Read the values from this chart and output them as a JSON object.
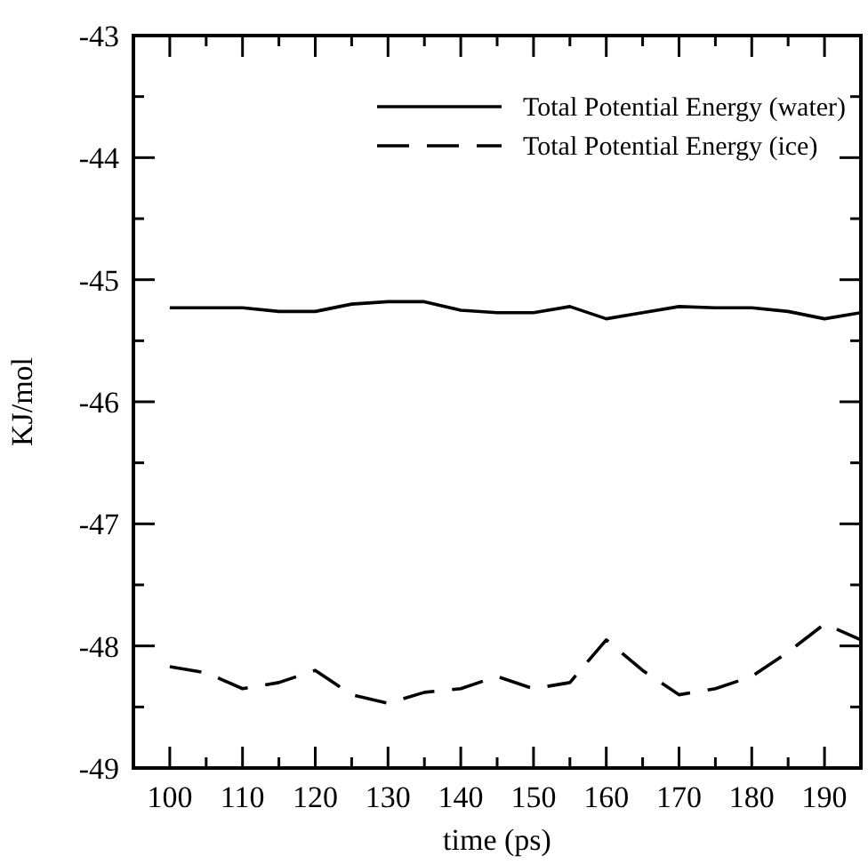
{
  "chart_data": {
    "type": "line",
    "xlabel": "time (ps)",
    "ylabel": "KJ/mol",
    "xlim": [
      95,
      195
    ],
    "ylim": [
      -49,
      -43
    ],
    "xticks": [
      100,
      {
        "value": 105,
        "label": null
      },
      110,
      {
        "value": 115,
        "label": null
      },
      120,
      {
        "value": 125,
        "label": null
      },
      130,
      {
        "value": 135,
        "label": null
      },
      140,
      {
        "value": 145,
        "label": null
      },
      150,
      {
        "value": 155,
        "label": null
      },
      160,
      {
        "value": 165,
        "label": null
      },
      170,
      {
        "value": 175,
        "label": null
      },
      180,
      {
        "value": 185,
        "label": null
      },
      190
    ],
    "yticks": [
      -49,
      {
        "value": -48.5,
        "label": null
      },
      -48,
      {
        "value": -47.5,
        "label": null
      },
      -47,
      {
        "value": -46.5,
        "label": null
      },
      -46,
      {
        "value": -45.5,
        "label": null
      },
      -45,
      {
        "value": -44.5,
        "label": null
      },
      -44,
      {
        "value": -43.5,
        "label": null
      },
      -43
    ],
    "x": [
      100,
      105,
      110,
      115,
      120,
      125,
      130,
      135,
      140,
      145,
      150,
      155,
      160,
      165,
      170,
      175,
      180,
      185,
      190,
      195
    ],
    "legend": "top right",
    "grid": false,
    "marker": "none",
    "series": [
      {
        "name": "Total Potential Energy (water)",
        "color": "#000000",
        "line_style": "solid",
        "values": [
          -45.23,
          -45.23,
          -45.23,
          -45.26,
          -45.26,
          -45.2,
          -45.18,
          -45.18,
          -45.25,
          -45.27,
          -45.27,
          -45.22,
          -45.32,
          -45.27,
          -45.22,
          -45.23,
          -45.23,
          -45.26,
          -45.32,
          -45.27
        ]
      },
      {
        "name": "Total Potential Energy (ice)",
        "color": "#000000",
        "line_style": "dashed",
        "values": [
          -48.17,
          -48.22,
          -48.35,
          -48.3,
          -48.2,
          -48.4,
          -48.47,
          -48.38,
          -48.35,
          -48.25,
          -48.35,
          -48.3,
          -47.95,
          -48.2,
          -48.4,
          -48.35,
          -48.25,
          -48.05,
          -47.82,
          -47.95
        ]
      }
    ]
  }
}
